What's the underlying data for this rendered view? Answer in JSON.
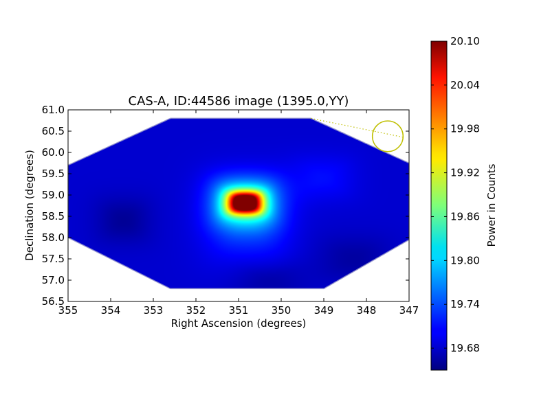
{
  "chart_data": {
    "type": "heatmap",
    "title": "CAS-A, ID:44586 image (1395.0,YY)",
    "xlabel": "Right Ascension (degrees)",
    "ylabel": "Declination (degrees)",
    "xlim": [
      355,
      347
    ],
    "ylim": [
      56.5,
      61.0
    ],
    "xticks": [
      "355",
      "354",
      "353",
      "352",
      "351",
      "350",
      "349",
      "348",
      "347"
    ],
    "yticks": [
      "56.5",
      "57.0",
      "57.5",
      "58.0",
      "58.5",
      "59.0",
      "59.5",
      "60.0",
      "60.5",
      "61.0"
    ],
    "colorbar": {
      "label": "Power in Counts",
      "range": [
        19.65,
        20.1
      ],
      "ticks": [
        "19.68",
        "19.74",
        "19.80",
        "19.86",
        "19.92",
        "19.98",
        "20.04",
        "20.10"
      ],
      "colormap": "jet"
    },
    "footprint_outline": [
      [
        352.6,
        60.8
      ],
      [
        349.3,
        60.8
      ],
      [
        347.0,
        59.75
      ],
      [
        347.0,
        57.95
      ],
      [
        349.0,
        56.8
      ],
      [
        352.6,
        56.8
      ],
      [
        355.0,
        58.0
      ],
      [
        355.0,
        59.7
      ]
    ],
    "background_level": 19.685,
    "peak": {
      "ra": 350.85,
      "dec": 58.82,
      "value": 20.1
    },
    "components": [
      {
        "ra": 350.85,
        "dec": 58.82,
        "amplitude": 0.41,
        "sigma_ra": 0.35,
        "sigma_dec": 0.22
      },
      {
        "ra": 350.85,
        "dec": 58.82,
        "amplitude": 0.16,
        "sigma_ra": 0.65,
        "sigma_dec": 0.5
      },
      {
        "ra": 350.8,
        "dec": 58.4,
        "amplitude": 0.05,
        "sigma_ra": 0.9,
        "sigma_dec": 0.9
      },
      {
        "ra": 349.0,
        "dec": 59.4,
        "amplitude": 0.025,
        "sigma_ra": 0.7,
        "sigma_dec": 0.5
      },
      {
        "ra": 353.7,
        "dec": 58.4,
        "amplitude": -0.025,
        "sigma_ra": 0.6,
        "sigma_dec": 0.5
      },
      {
        "ra": 348.3,
        "dec": 57.5,
        "amplitude": -0.02,
        "sigma_ra": 0.8,
        "sigma_dec": 0.5
      },
      {
        "ra": 350.3,
        "dec": 57.0,
        "amplitude": -0.02,
        "sigma_ra": 0.8,
        "sigma_dec": 0.4
      }
    ],
    "annotation_circle": {
      "ra": 347.5,
      "dec": 60.38,
      "radius_deg": 0.36,
      "color": "#bfbf00"
    },
    "annotation_line": {
      "from": [
        349.3,
        60.8
      ],
      "to": [
        347.1,
        60.35
      ],
      "color": "#bfbf00"
    }
  }
}
